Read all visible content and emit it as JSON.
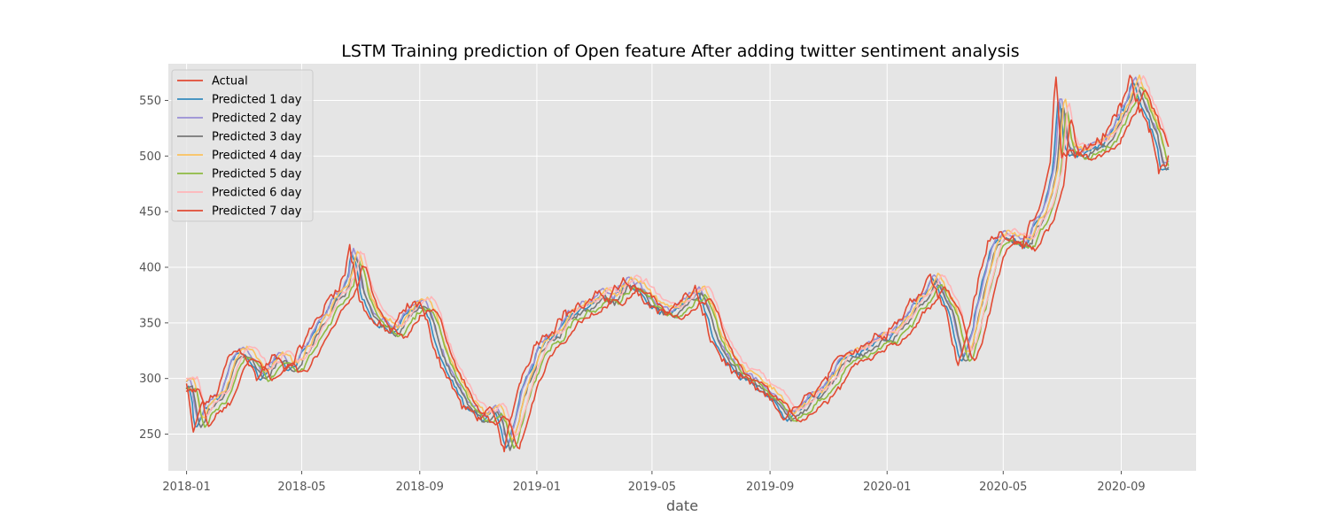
{
  "chart_data": {
    "type": "line",
    "title": "LSTM Training prediction of Open feature After adding twitter sentiment analysis",
    "xlabel": "date",
    "ylabel": "",
    "x_ticks": [
      "2018-01",
      "2018-05",
      "2018-09",
      "2019-01",
      "2019-05",
      "2019-09",
      "2020-01",
      "2020-05",
      "2020-09"
    ],
    "y_ticks": [
      250,
      300,
      350,
      400,
      450,
      500,
      550
    ],
    "xlim": [
      "2017-12-13",
      "2020-11-18"
    ],
    "ylim": [
      217,
      583
    ],
    "grid": true,
    "legend_position": "top-left",
    "background": "#e5e5e5",
    "anchor_dates": [
      "2018-01-01",
      "2018-01-08",
      "2018-01-16",
      "2018-02-01",
      "2018-02-15",
      "2018-03-01",
      "2018-03-15",
      "2018-04-01",
      "2018-04-15",
      "2018-05-01",
      "2018-05-15",
      "2018-06-01",
      "2018-06-15",
      "2018-06-20",
      "2018-07-01",
      "2018-07-15",
      "2018-08-01",
      "2018-08-15",
      "2018-09-01",
      "2018-09-15",
      "2018-10-01",
      "2018-10-15",
      "2018-11-01",
      "2018-11-15",
      "2018-11-28",
      "2018-12-15",
      "2019-01-01",
      "2019-01-15",
      "2019-02-01",
      "2019-02-15",
      "2019-03-01",
      "2019-03-15",
      "2019-04-01",
      "2019-04-15",
      "2019-05-01",
      "2019-05-15",
      "2019-06-01",
      "2019-06-15",
      "2019-07-01",
      "2019-07-15",
      "2019-08-01",
      "2019-08-15",
      "2019-09-01",
      "2019-09-15",
      "2019-10-01",
      "2019-10-15",
      "2019-11-01",
      "2019-11-15",
      "2019-12-01",
      "2019-12-15",
      "2020-01-01",
      "2020-01-15",
      "2020-02-01",
      "2020-02-15",
      "2020-03-01",
      "2020-03-15",
      "2020-04-01",
      "2020-04-15",
      "2020-05-01",
      "2020-05-15",
      "2020-06-01",
      "2020-06-15",
      "2020-06-19",
      "2020-06-25",
      "2020-07-01",
      "2020-07-15",
      "2020-08-01",
      "2020-08-15",
      "2020-09-01",
      "2020-09-10",
      "2020-09-20",
      "2020-10-01",
      "2020-10-10",
      "2020-10-20"
    ],
    "actual": [
      295,
      250,
      275,
      285,
      320,
      325,
      300,
      320,
      310,
      330,
      350,
      375,
      395,
      420,
      370,
      350,
      340,
      360,
      370,
      330,
      300,
      275,
      265,
      270,
      235,
      300,
      335,
      345,
      360,
      365,
      370,
      375,
      385,
      375,
      365,
      360,
      370,
      380,
      335,
      315,
      300,
      290,
      280,
      265,
      275,
      285,
      300,
      320,
      330,
      335,
      345,
      355,
      375,
      395,
      365,
      310,
      370,
      420,
      435,
      425,
      435,
      470,
      490,
      568,
      500,
      505,
      510,
      520,
      545,
      568,
      545,
      520,
      490,
      500
    ],
    "series": [
      {
        "name": "Actual",
        "color": "#e24a33"
      },
      {
        "name": "Predicted 1 day",
        "color": "#348abd"
      },
      {
        "name": "Predicted 2 day",
        "color": "#988ed5"
      },
      {
        "name": "Predicted 3 day",
        "color": "#777777"
      },
      {
        "name": "Predicted 4 day",
        "color": "#fbc15e"
      },
      {
        "name": "Predicted 5 day",
        "color": "#8eba42"
      },
      {
        "name": "Predicted 6 day",
        "color": "#ffb5b8"
      },
      {
        "name": "Predicted 7 day",
        "color": "#e24a33"
      }
    ]
  }
}
